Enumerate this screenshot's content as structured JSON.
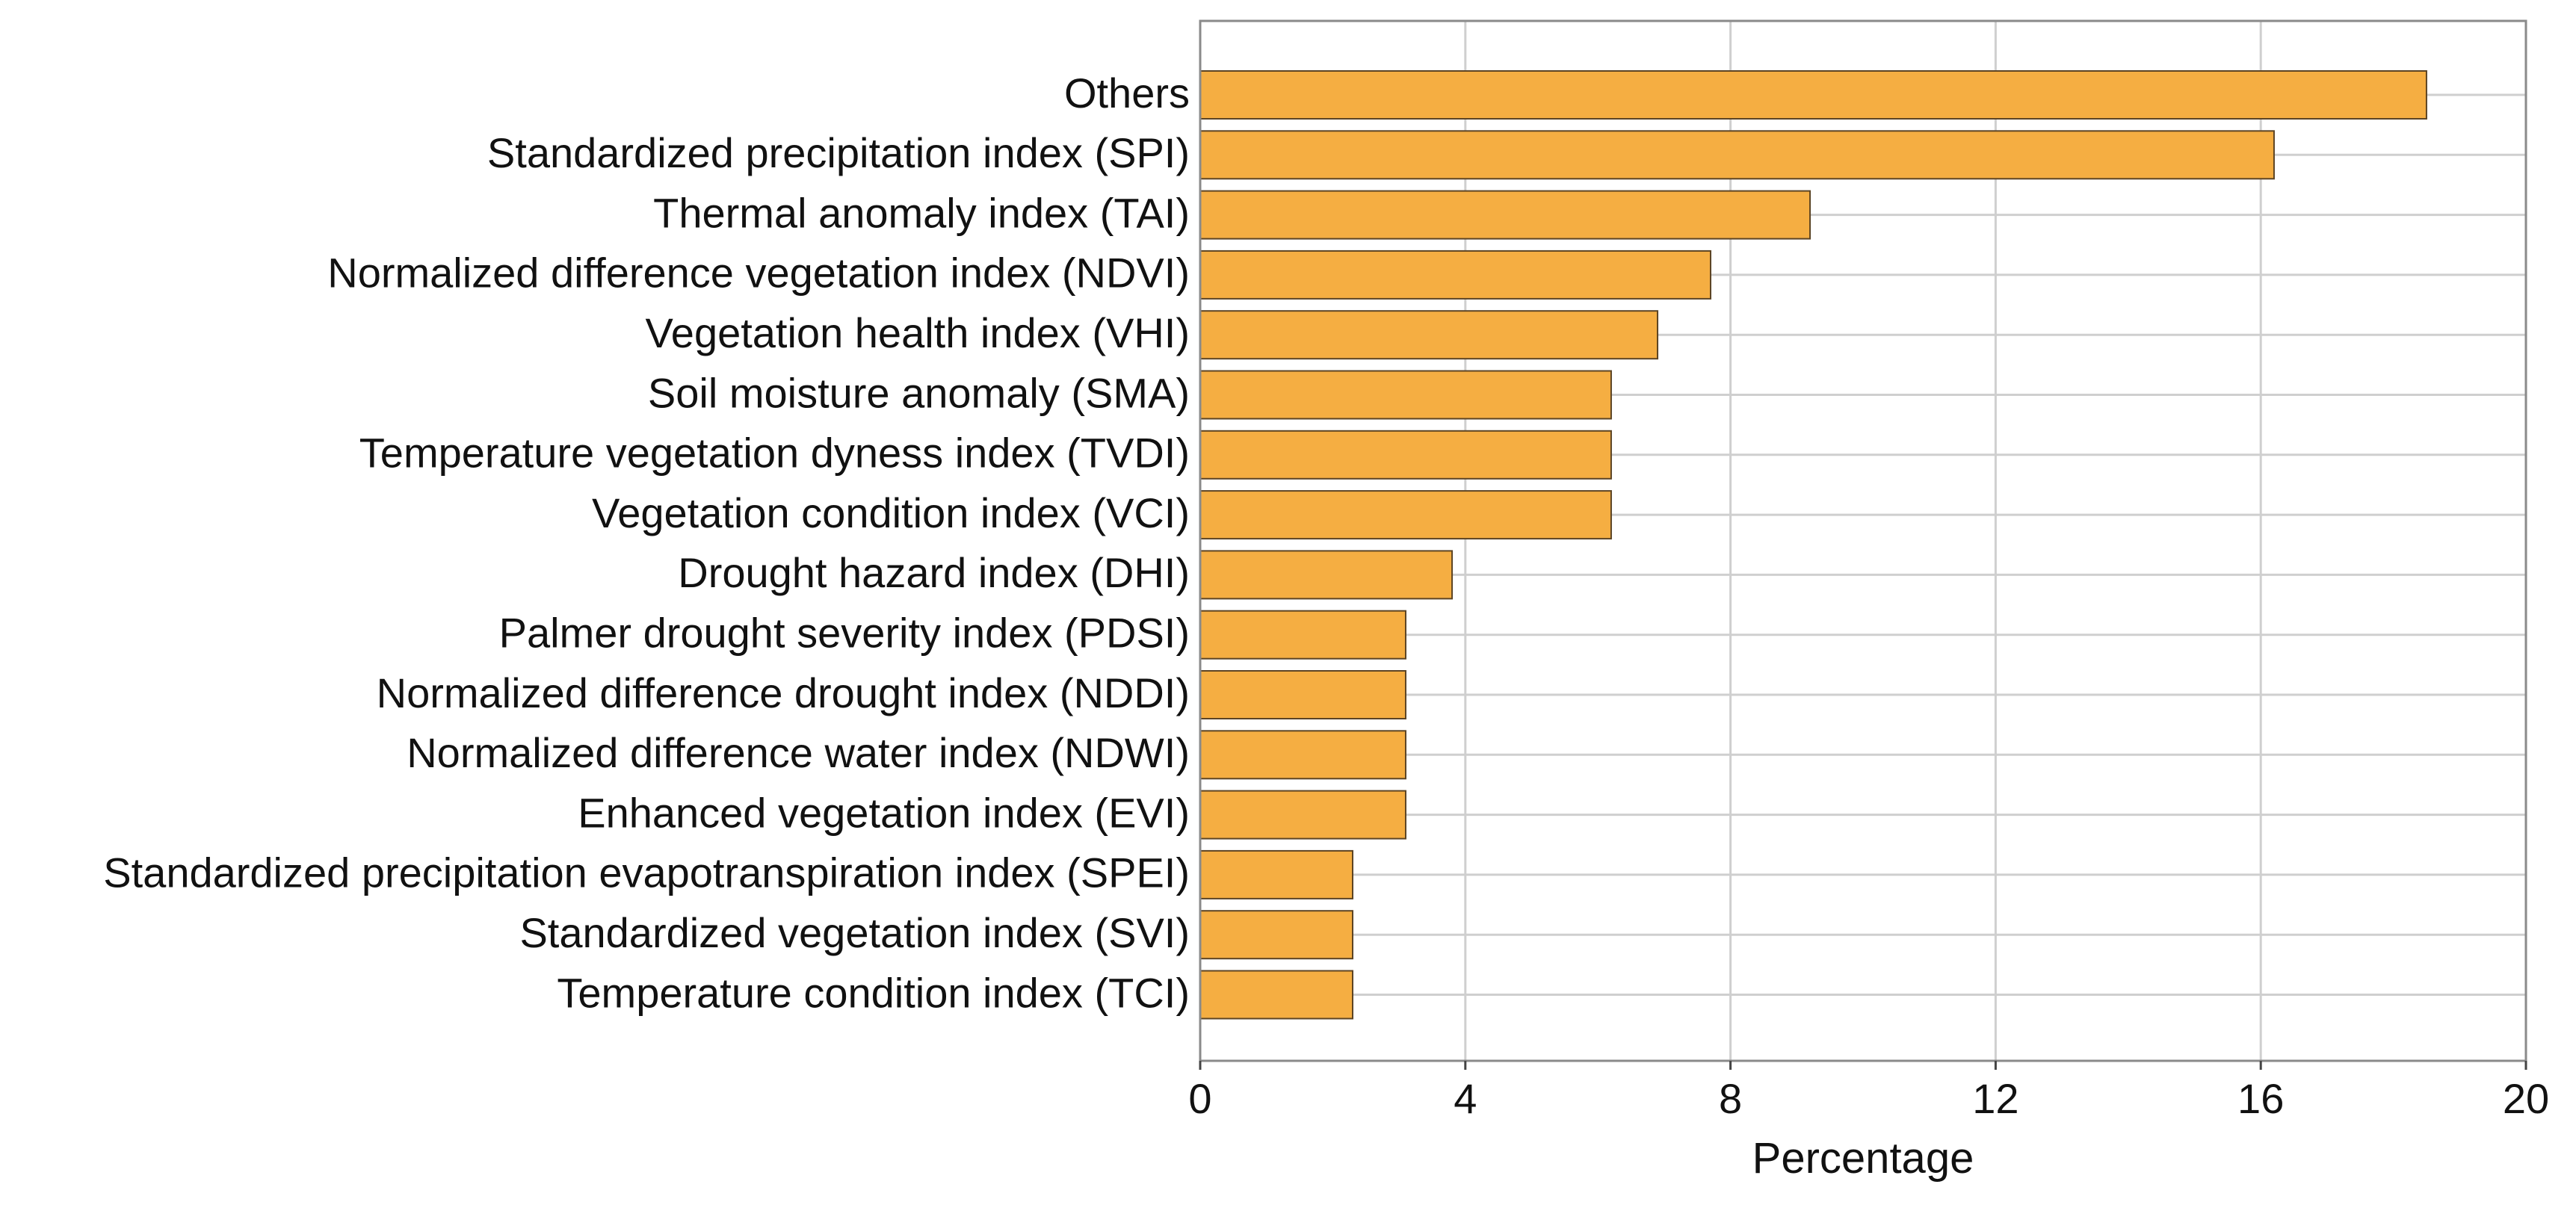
{
  "chart_data": {
    "type": "bar",
    "orientation": "horizontal",
    "title": "",
    "xlabel": "Percentage",
    "ylabel": "",
    "xlim": [
      0,
      20
    ],
    "xticks": [
      0,
      4,
      8,
      12,
      16,
      20
    ],
    "xtick_labels": [
      "0",
      "4",
      "8",
      "12",
      "16",
      "20"
    ],
    "grid": true,
    "bar_color": "#F5AE42",
    "bar_edge_color": "#5C4424",
    "grid_color": "#CFCFCF",
    "categories": [
      "Others",
      "Standardized precipitation index (SPI)",
      "Thermal anomaly index (TAI)",
      "Normalized difference vegetation index (NDVI)",
      "Vegetation health index (VHI)",
      "Soil moisture anomaly (SMA)",
      "Temperature vegetation dyness index (TVDI)",
      "Vegetation condition index (VCI)",
      "Drought hazard index (DHI)",
      "Palmer drought severity index (PDSI)",
      "Normalized difference drought index (NDDI)",
      "Normalized difference water index (NDWI)",
      "Enhanced vegetation index (EVI)",
      "Standardized precipitation evapotranspiration index (SPEI)",
      "Standardized vegetation index (SVI)",
      "Temperature condition index (TCI)"
    ],
    "values": [
      18.5,
      16.2,
      9.2,
      7.7,
      6.9,
      6.2,
      6.2,
      6.2,
      3.8,
      3.1,
      3.1,
      3.1,
      3.1,
      2.3,
      2.3,
      2.3
    ]
  }
}
